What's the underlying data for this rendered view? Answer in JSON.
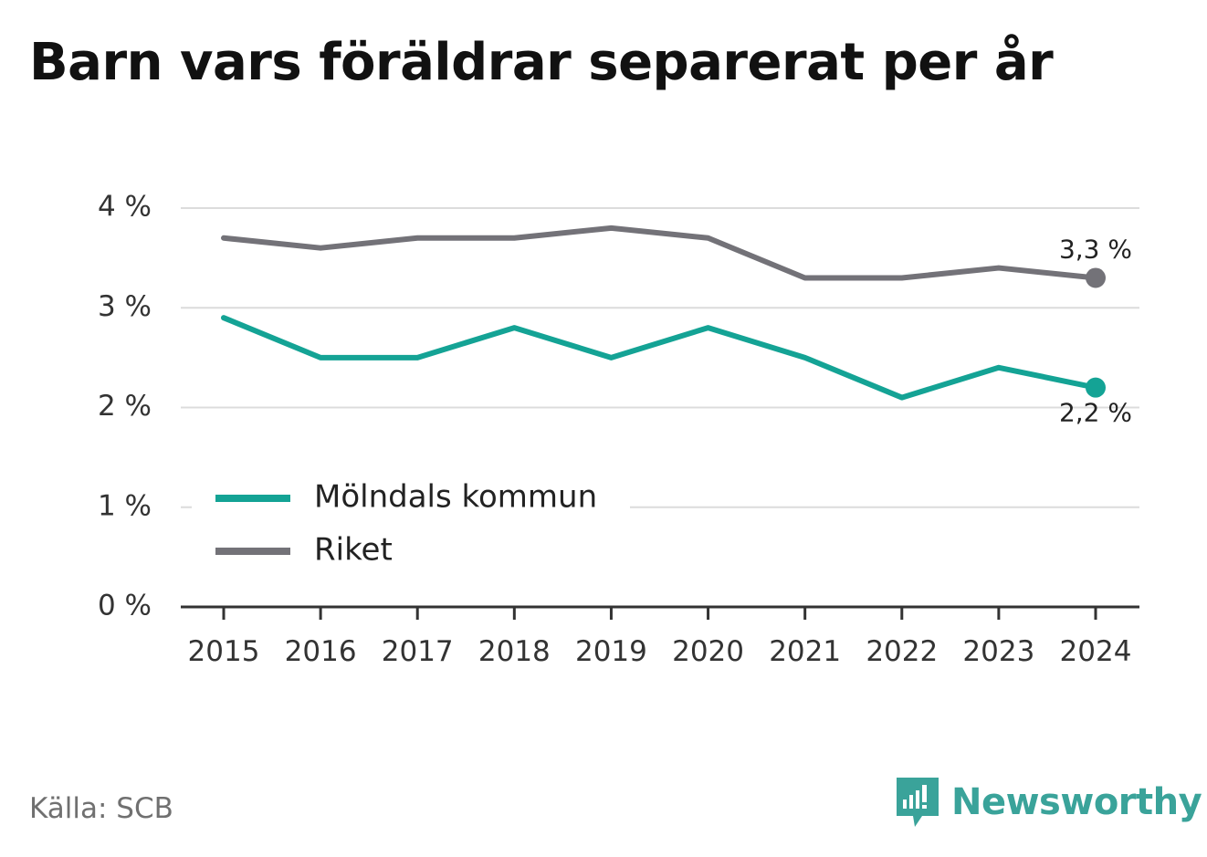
{
  "title": "Barn vars föräldrar separerat per år",
  "source": "Källa: SCB",
  "brand": {
    "name": "Newsworthy",
    "icon": "newsworthy-logo-icon",
    "color": "#3aa39a"
  },
  "chart_data": {
    "type": "line",
    "title": "Barn vars föräldrar separerat per år",
    "x": [
      "2015",
      "2016",
      "2017",
      "2018",
      "2019",
      "2020",
      "2021",
      "2022",
      "2023",
      "2024"
    ],
    "yticks": [
      "0 %",
      "1 %",
      "2 %",
      "3 %",
      "4 %"
    ],
    "ylim": [
      0,
      4
    ],
    "grid": true,
    "legend_position": "bottom-left",
    "series": [
      {
        "name": "Mölndals kommun",
        "color": "#14a395",
        "values": [
          2.9,
          2.5,
          2.5,
          2.8,
          2.5,
          2.8,
          2.5,
          2.1,
          2.4,
          2.2
        ],
        "end_label": "2,2 %"
      },
      {
        "name": "Riket",
        "color": "#737278",
        "values": [
          3.7,
          3.6,
          3.7,
          3.7,
          3.8,
          3.7,
          3.3,
          3.3,
          3.4,
          3.3
        ],
        "end_label": "3,3 %"
      }
    ]
  }
}
